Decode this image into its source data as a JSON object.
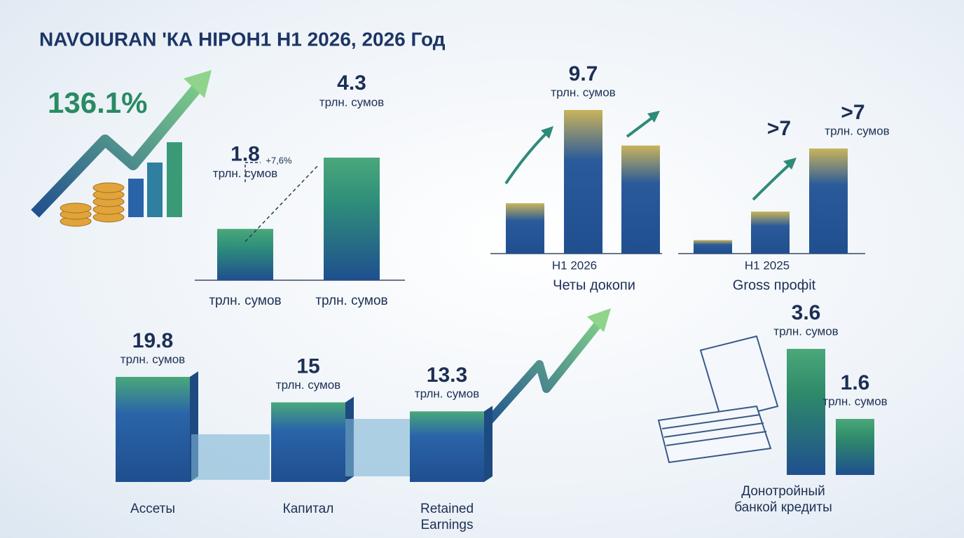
{
  "title": "NAVOIURAN 'КА HIPOH1 H1 2026, 2026 Год",
  "highlight": "136.1%",
  "chart_data": [
    {
      "type": "bar",
      "unit": "трлн. сумов",
      "categories": [
        "трлн. сумов",
        "трлн. сумов"
      ],
      "values": [
        1.8,
        4.3
      ],
      "annotation": "+7,6%",
      "color": "#2f8f7a"
    },
    {
      "type": "bar",
      "unit": "трлн. сумов",
      "categories": [
        null,
        null,
        null
      ],
      "values": [
        3.4,
        9.7,
        7.3
      ],
      "value_labels": [
        null,
        "9.7",
        null
      ],
      "x_label": "H1 2026",
      "caption": "Четы докопи",
      "color": "#2a5a9a"
    },
    {
      "type": "bar",
      "unit": "трлн. сумов",
      "categories": [
        null,
        null,
        null
      ],
      "values": [
        0.9,
        2.8,
        7
      ],
      "value_labels": [
        null,
        null,
        ">7"
      ],
      "annotation": ">7",
      "x_label": "H1 2025",
      "caption": "Gross профit",
      "color": "#2a5a9a"
    },
    {
      "type": "bar",
      "unit": "трлн. сумов",
      "categories": [
        "Ассеты",
        "Капитал",
        "Retained Earnings"
      ],
      "values": [
        19.8,
        15,
        13.3
      ],
      "color": "#2a64a8"
    },
    {
      "type": "bar",
      "unit": "трлн. сумов",
      "categories": [
        null,
        null
      ],
      "values": [
        3.6,
        1.6
      ],
      "caption": "Донотройный банкой кредиты",
      "color": "#2f8a6a"
    }
  ]
}
